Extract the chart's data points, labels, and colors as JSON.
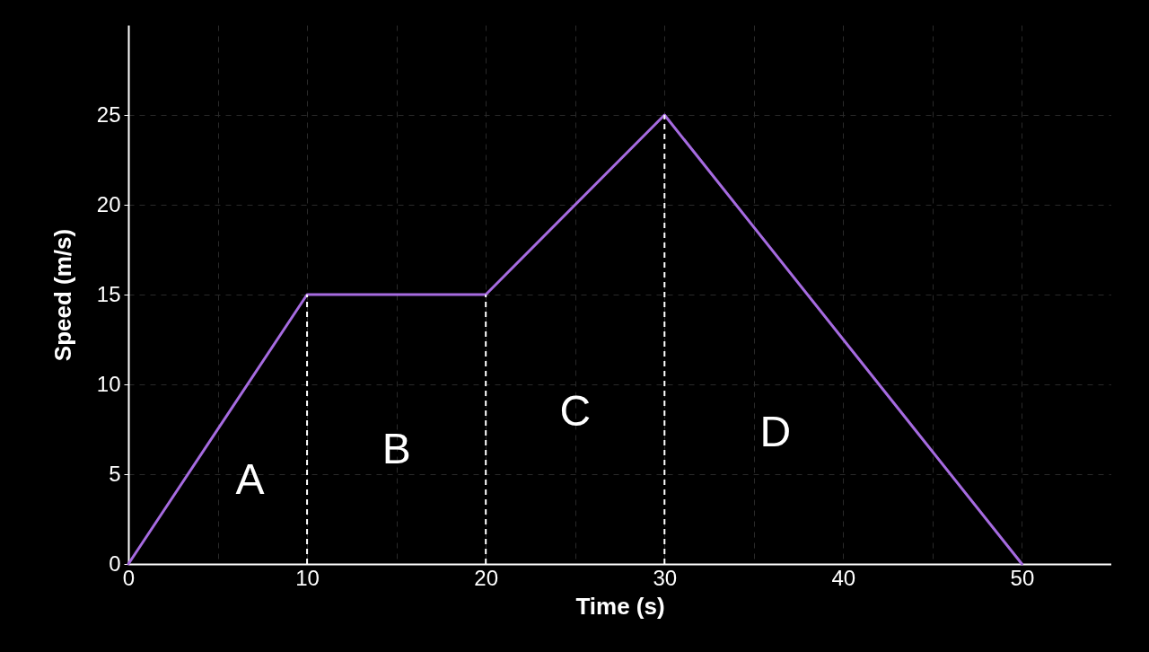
{
  "chart_data": {
    "type": "line",
    "xlabel": "Time (s)",
    "ylabel": "Speed (m/s)",
    "x": [
      0,
      10,
      20,
      30,
      50
    ],
    "series": [
      {
        "color": "#a66be0",
        "values": [
          0,
          15,
          15,
          25,
          0
        ]
      }
    ],
    "xlim": [
      0,
      55
    ],
    "ylim": [
      0,
      30
    ],
    "xticks": [
      0,
      {
        "value": 5,
        "label": null
      },
      10,
      {
        "value": 15,
        "label": null
      },
      20,
      {
        "value": 25,
        "label": null
      },
      30,
      {
        "value": 35,
        "label": null
      },
      40,
      {
        "value": 45,
        "label": null
      },
      50
    ],
    "yticks": [
      0,
      5,
      10,
      15,
      20,
      25
    ],
    "grid": true,
    "marker": "none",
    "line_style": "solid",
    "ref_lines": [
      {
        "axis": "x",
        "value": 10,
        "color": "#ffffff",
        "line_style": "dashed"
      },
      {
        "axis": "x",
        "value": 20,
        "color": "#ffffff",
        "line_style": "dashed"
      },
      {
        "axis": "x",
        "value": 30,
        "color": "#ffffff",
        "line_style": "dashed"
      }
    ],
    "annotations": [
      "A",
      "B",
      "C",
      "D"
    ]
  }
}
